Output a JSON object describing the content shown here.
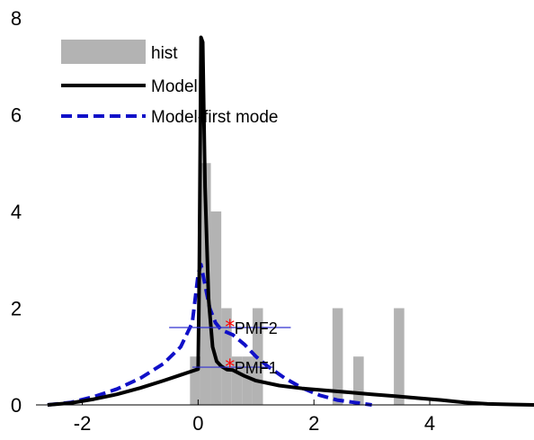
{
  "chart_data": {
    "type": "line",
    "title": "",
    "xlabel": "",
    "ylabel": "",
    "xlim": [
      -2.8,
      5.8
    ],
    "ylim": [
      0,
      8
    ],
    "xticks": [
      -2,
      0,
      2,
      4
    ],
    "yticks": [
      0,
      2,
      4,
      6,
      8
    ],
    "grid": false,
    "legend_position": "top-left",
    "legend": [
      "hist",
      "Model",
      "Model-first mode"
    ],
    "histogram": {
      "name": "hist",
      "color": "#b3b3b3",
      "bin_width": 0.18,
      "bins": [
        {
          "x": -0.05,
          "y": 1
        },
        {
          "x": 0.13,
          "y": 5
        },
        {
          "x": 0.31,
          "y": 4
        },
        {
          "x": 0.49,
          "y": 2
        },
        {
          "x": 0.67,
          "y": 1
        },
        {
          "x": 0.85,
          "y": 1
        },
        {
          "x": 1.03,
          "y": 2
        },
        {
          "x": 2.41,
          "y": 2
        },
        {
          "x": 2.77,
          "y": 1
        },
        {
          "x": 3.47,
          "y": 2
        }
      ]
    },
    "series": [
      {
        "name": "Model",
        "color": "#000000",
        "style": "solid",
        "x": [
          -2.6,
          -2.2,
          -1.8,
          -1.4,
          -1.0,
          -0.6,
          -0.3,
          -0.1,
          0.0,
          0.02,
          0.05,
          0.08,
          0.12,
          0.18,
          0.25,
          0.32,
          0.4,
          0.5,
          0.6,
          0.8,
          1.0,
          1.4,
          1.8,
          2.2,
          2.6,
          3.0,
          3.4,
          3.8,
          4.2,
          4.6,
          5.0,
          5.4,
          5.8
        ],
        "y": [
          0.0,
          0.04,
          0.12,
          0.22,
          0.35,
          0.5,
          0.62,
          0.7,
          0.74,
          2.8,
          7.6,
          7.5,
          4.5,
          2.2,
          1.2,
          0.9,
          0.8,
          0.73,
          0.72,
          0.6,
          0.5,
          0.4,
          0.34,
          0.3,
          0.26,
          0.22,
          0.18,
          0.14,
          0.1,
          0.05,
          0.02,
          0.01,
          0.0
        ]
      },
      {
        "name": "Model-first mode",
        "color": "#1010c8",
        "style": "dashed",
        "x": [
          -2.6,
          -2.2,
          -1.8,
          -1.4,
          -1.0,
          -0.6,
          -0.3,
          -0.1,
          0.0,
          0.05,
          0.1,
          0.15,
          0.2,
          0.3,
          0.4,
          0.5,
          0.6,
          0.8,
          1.0,
          1.2,
          1.5,
          1.8,
          2.1,
          2.4,
          2.7,
          3.0
        ],
        "y": [
          0.0,
          0.05,
          0.17,
          0.33,
          0.55,
          0.85,
          1.2,
          1.7,
          2.7,
          2.9,
          2.6,
          2.3,
          2.0,
          1.7,
          1.55,
          1.5,
          1.45,
          1.25,
          1.0,
          0.8,
          0.55,
          0.35,
          0.2,
          0.1,
          0.05,
          0.0
        ]
      }
    ],
    "annotations": [
      {
        "label": "PMF2",
        "x": 0.55,
        "y": 1.6,
        "color": "#ff0000",
        "errorbar": [
          -0.5,
          1.6
        ]
      },
      {
        "label": "PMF1",
        "x": 0.55,
        "y": 0.78,
        "color": "#ff0000",
        "errorbar": [
          -0.1,
          1.3
        ]
      }
    ]
  }
}
